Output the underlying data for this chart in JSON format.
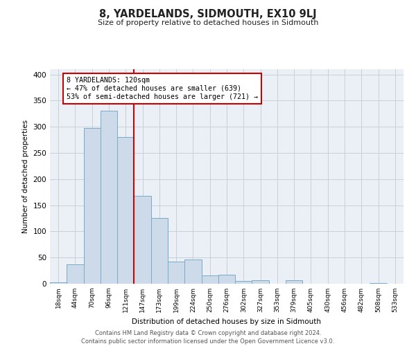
{
  "title": "8, YARDELANDS, SIDMOUTH, EX10 9LJ",
  "subtitle": "Size of property relative to detached houses in Sidmouth",
  "xlabel": "Distribution of detached houses by size in Sidmouth",
  "ylabel": "Number of detached properties",
  "bin_labels": [
    "18sqm",
    "44sqm",
    "70sqm",
    "96sqm",
    "121sqm",
    "147sqm",
    "173sqm",
    "199sqm",
    "224sqm",
    "250sqm",
    "276sqm",
    "302sqm",
    "327sqm",
    "353sqm",
    "379sqm",
    "405sqm",
    "430sqm",
    "456sqm",
    "482sqm",
    "508sqm",
    "533sqm"
  ],
  "bar_heights": [
    3,
    37,
    298,
    330,
    280,
    168,
    125,
    42,
    46,
    16,
    17,
    5,
    6,
    0,
    6,
    0,
    0,
    0,
    0,
    1,
    0
  ],
  "bar_color": "#ccdaea",
  "bar_edgecolor": "#7aaac8",
  "property_line_index": 4,
  "property_line_color": "#cc0000",
  "annotation_text": "8 YARDELANDS: 120sqm\n← 47% of detached houses are smaller (639)\n53% of semi-detached houses are larger (721) →",
  "annotation_box_color": "#ffffff",
  "annotation_box_edgecolor": "#cc0000",
  "ylim": [
    0,
    410
  ],
  "yticks": [
    0,
    50,
    100,
    150,
    200,
    250,
    300,
    350,
    400
  ],
  "bg_color": "#eaf0f6",
  "grid_color": "#c8d0d8",
  "footer_line1": "Contains HM Land Registry data © Crown copyright and database right 2024.",
  "footer_line2": "Contains public sector information licensed under the Open Government Licence v3.0."
}
